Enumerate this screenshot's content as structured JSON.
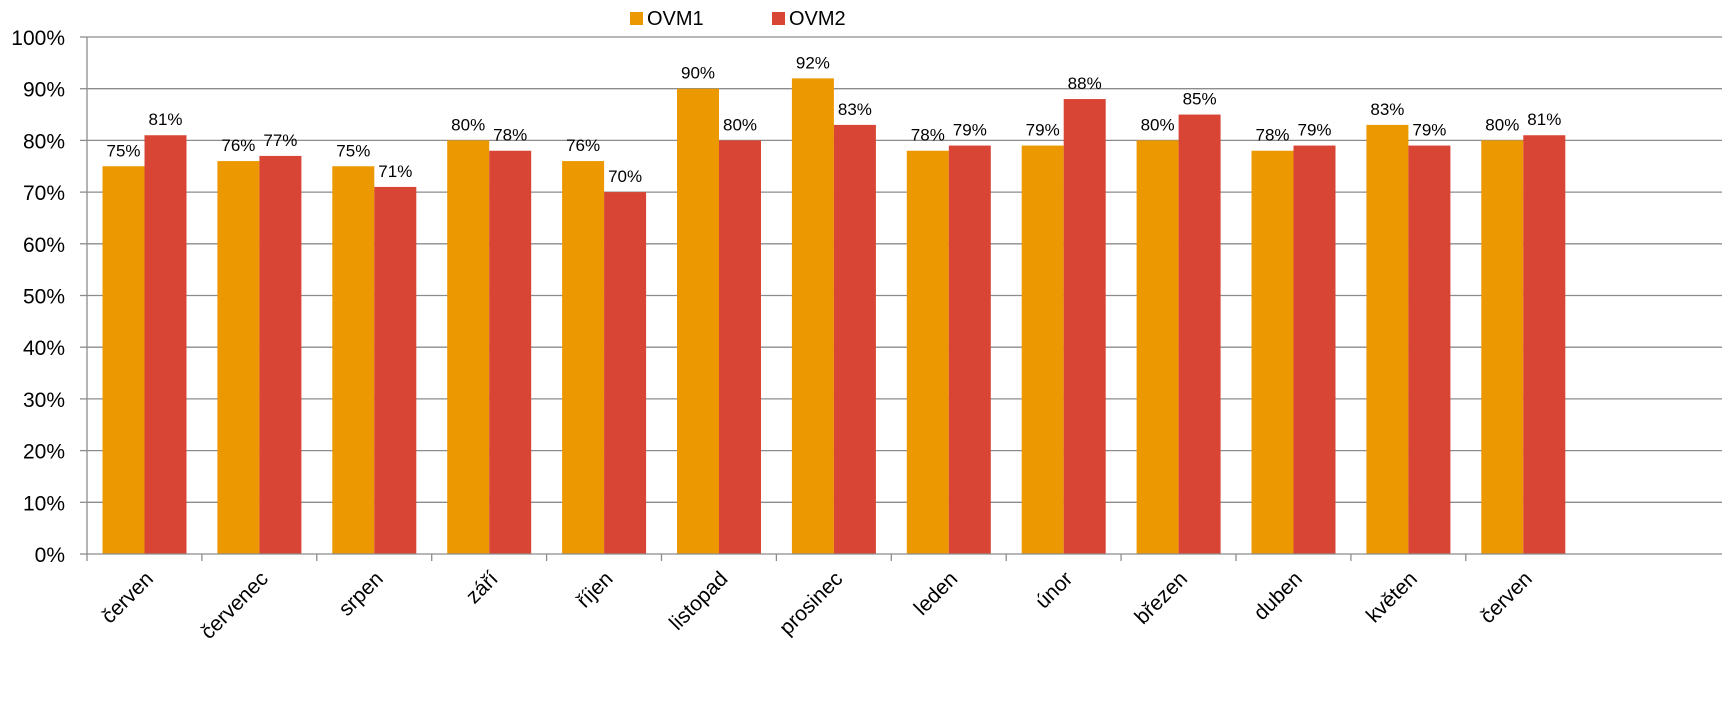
{
  "chart_data": {
    "type": "bar",
    "categories": [
      "červen",
      "červenec",
      "srpen",
      "září",
      "říjen",
      "listopad",
      "prosinec",
      "leden",
      "únor",
      "březen",
      "duben",
      "květen",
      "červen"
    ],
    "series": [
      {
        "name": "OVM1",
        "color": "#EC9800",
        "values": [
          75,
          76,
          75,
          80,
          76,
          90,
          92,
          78,
          79,
          80,
          78,
          83,
          80
        ]
      },
      {
        "name": "OVM2",
        "color": "#D94535",
        "values": [
          81,
          77,
          71,
          78,
          70,
          80,
          83,
          79,
          88,
          85,
          79,
          79,
          81
        ]
      }
    ],
    "ylim": [
      0,
      100
    ],
    "yticks": [
      0,
      10,
      20,
      30,
      40,
      50,
      60,
      70,
      80,
      90,
      100
    ],
    "value_suffix": "%",
    "grid": true,
    "legend": "top-center",
    "title": "",
    "xlabel": "",
    "ylabel": ""
  }
}
